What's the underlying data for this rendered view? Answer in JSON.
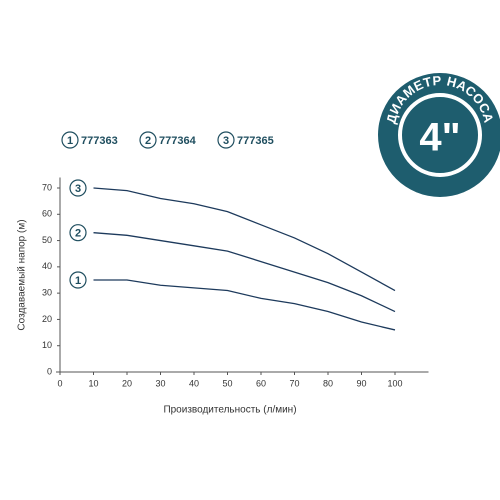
{
  "chart_data": {
    "type": "line",
    "x_label": "Производительность (л/мин)",
    "y_label": "Создаваемый напор (м)",
    "x": [
      10,
      20,
      30,
      40,
      50,
      60,
      70,
      80,
      90,
      100
    ],
    "series": [
      {
        "name": "777363",
        "marker": "1",
        "color": "#1d3a5c",
        "values": [
          35,
          35,
          33,
          32,
          31,
          28,
          26,
          23,
          19,
          16
        ]
      },
      {
        "name": "777364",
        "marker": "2",
        "color": "#1d3a5c",
        "values": [
          53,
          52,
          50,
          48,
          46,
          42,
          38,
          34,
          29,
          23
        ]
      },
      {
        "name": "777365",
        "marker": "3",
        "color": "#1d3a5c",
        "values": [
          70,
          69,
          66,
          64,
          61,
          56,
          51,
          45,
          38,
          31
        ]
      }
    ],
    "xlim": [
      0,
      110
    ],
    "ylim": [
      0,
      74
    ],
    "xticks": [
      0,
      10,
      20,
      30,
      40,
      50,
      60,
      70,
      80,
      90,
      100
    ],
    "yticks": [
      0,
      10,
      20,
      30,
      40,
      50,
      60,
      70
    ],
    "grid": false,
    "badge": {
      "ring_text": "ДИАМЕТР НАСОСА",
      "center_text": "4\"",
      "color": "#1e5d6e"
    }
  }
}
